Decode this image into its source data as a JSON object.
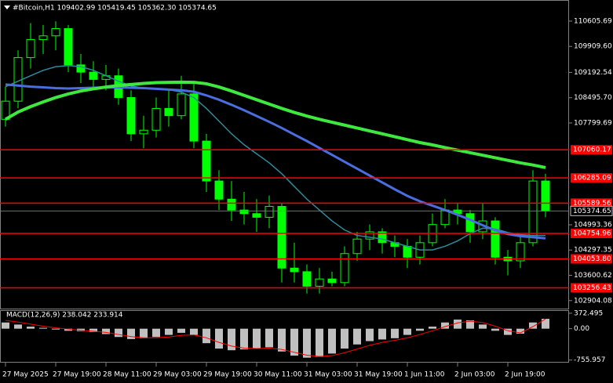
{
  "chart_data": [
    {
      "type": "candlestick",
      "title": "#Bitcoin,H1  109402.99 105419.45 105362.30 105374.65",
      "categories": [
        "27 May 2025",
        null,
        null,
        null,
        "27 May 19:00",
        null,
        null,
        null,
        "28 May 11:00",
        null,
        null,
        null,
        "29 May 03:00",
        null,
        null,
        null,
        "29 May 19:00",
        null,
        null,
        null,
        "30 May 11:00",
        null,
        null,
        null,
        "31 May 03:00",
        null,
        null,
        null,
        "31 May 19:00",
        null,
        null,
        null,
        "1 Jun 11:00",
        null,
        null,
        null,
        "2 Jun 03:00",
        null,
        null,
        null,
        "2 Jun 19:00",
        null,
        null,
        null
      ],
      "open": [
        107900,
        108400,
        109600,
        110100,
        110200,
        110400,
        109400,
        109200,
        109000,
        109100,
        108500,
        107500,
        107600,
        108200,
        108000,
        108600,
        107300,
        106200,
        105700,
        105400,
        105300,
        105200,
        105500,
        103800,
        103700,
        103300,
        103500,
        103400,
        104200,
        104600,
        104800,
        104500,
        104400,
        104100,
        104500,
        105000,
        105400,
        105300,
        104800,
        105100,
        104100,
        104000,
        104500,
        106200
      ],
      "high": [
        108800,
        109800,
        110550,
        110500,
        110600,
        110500,
        109700,
        109500,
        109400,
        109300,
        108700,
        108000,
        108500,
        108700,
        109100,
        108900,
        107500,
        106500,
        106200,
        105900,
        105700,
        105800,
        105600,
        104500,
        103900,
        103800,
        103700,
        104400,
        104800,
        105000,
        104900,
        104700,
        104600,
        104700,
        105300,
        105700,
        105600,
        105400,
        105600,
        105200,
        104300,
        104700,
        106500,
        106400
      ],
      "low": [
        107700,
        108200,
        109300,
        109700,
        109800,
        109200,
        108900,
        108800,
        108700,
        108300,
        107300,
        107100,
        107400,
        107700,
        107900,
        107100,
        105900,
        105400,
        105100,
        105000,
        104800,
        104900,
        103400,
        103400,
        103100,
        103100,
        103300,
        103300,
        104000,
        104300,
        104200,
        104100,
        103800,
        103900,
        104400,
        104900,
        105000,
        104500,
        104600,
        103900,
        103600,
        103800,
        104400,
        105200
      ],
      "close": [
        108400,
        109600,
        110100,
        110200,
        110400,
        109400,
        109200,
        109000,
        109100,
        108500,
        107500,
        107600,
        108200,
        108000,
        108600,
        107300,
        106200,
        105700,
        105400,
        105300,
        105200,
        105500,
        103800,
        103700,
        103300,
        103500,
        103400,
        104200,
        104600,
        104800,
        104500,
        104400,
        104100,
        104500,
        105000,
        105400,
        105300,
        104800,
        105100,
        104100,
        104000,
        104500,
        106200,
        105374.65
      ],
      "up_color": "#00ff00",
      "down_color": "#00ff00",
      "series": [
        {
          "color": "#2e8b9a",
          "values": [
            108800,
            108950,
            109100,
            109250,
            109350,
            109380,
            109350,
            109250,
            109100,
            108950,
            108820,
            108760,
            108740,
            108720,
            108650,
            108500,
            108200,
            107850,
            107500,
            107200,
            106950,
            106700,
            106400,
            106050,
            105700,
            105400,
            105100,
            104850,
            104700,
            104650,
            104600,
            104500,
            104400,
            104300,
            104300,
            104400,
            104550,
            104750,
            104900,
            104880,
            104780,
            104720,
            104700,
            104700
          ]
        },
        {
          "color": "#4a6ee0",
          "values": [
            108860,
            108830,
            108800,
            108780,
            108760,
            108750,
            108760,
            108770,
            108780,
            108780,
            108770,
            108760,
            108740,
            108720,
            108700,
            108660,
            108560,
            108440,
            108300,
            108150,
            107990,
            107830,
            107660,
            107480,
            107300,
            107110,
            106920,
            106730,
            106540,
            106350,
            106160,
            105970,
            105790,
            105640,
            105520,
            105400,
            105270,
            105130,
            104980,
            104840,
            104740,
            104680,
            104650,
            104620
          ]
        },
        {
          "color": "#3ee83e",
          "values": [
            107900,
            108100,
            108250,
            108380,
            108500,
            108600,
            108680,
            108740,
            108790,
            108830,
            108860,
            108890,
            108910,
            108920,
            108925,
            108920,
            108880,
            108790,
            108680,
            108560,
            108440,
            108320,
            108200,
            108090,
            107990,
            107900,
            107820,
            107740,
            107660,
            107580,
            107500,
            107420,
            107340,
            107260,
            107195,
            107120,
            107050,
            106980,
            106910,
            106840,
            106770,
            106700,
            106640,
            106570
          ]
        }
      ],
      "levels": [
        107060.17,
        106285.09,
        105589.56,
        104754.96,
        {
          "value": 104053.8,
          "label": "104053.80"
        },
        103256.43
      ],
      "level_color": "#ff0000",
      "last_price": 105374.65,
      "ylim": [
        102662,
        111188
      ],
      "yticks": [
        110605.69,
        {
          "value": 109909.6,
          "label": "109909.60"
        },
        109192.54,
        {
          "value": 108495.7,
          "label": "108495.70"
        },
        107799.69,
        104993.36,
        104297.35,
        103600.62,
        102904.08
      ]
    },
    {
      "type": "bar",
      "title": "MACD(12,26,9) 238.042 233.914",
      "series": [
        {
          "color": "#c0c0c0",
          "values": [
            150,
            100,
            50,
            20,
            -20,
            -50,
            -60,
            -80,
            -130,
            -200,
            -250,
            -230,
            -200,
            -150,
            -100,
            -150,
            -350,
            -480,
            -520,
            -500,
            -470,
            -450,
            -550,
            -650,
            -700,
            -680,
            -600,
            -480,
            -380,
            -300,
            -260,
            -230,
            -150,
            -50,
            50,
            150,
            220,
            200,
            100,
            -50,
            -150,
            -120,
            150,
            238.042
          ]
        },
        {
          "type": "line",
          "color": "#ff0000",
          "values": [
            200,
            160,
            110,
            60,
            20,
            -10,
            -40,
            -60,
            -90,
            -140,
            -190,
            -220,
            -220,
            -200,
            -160,
            -150,
            -220,
            -330,
            -420,
            -470,
            -480,
            -470,
            -500,
            -570,
            -640,
            -670,
            -650,
            -580,
            -490,
            -400,
            -330,
            -280,
            -220,
            -140,
            -50,
            50,
            140,
            180,
            150,
            60,
            -50,
            -100,
            50,
            233.914
          ]
        }
      ],
      "ylim": [
        -819,
        447
      ],
      "yticks": [
        372.495,
        {
          "value": 0,
          "label": "0.00"
        },
        -755.957
      ]
    }
  ]
}
